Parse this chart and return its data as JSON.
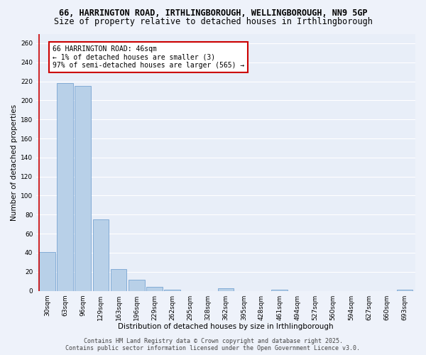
{
  "title_line1": "66, HARRINGTON ROAD, IRTHLINGBOROUGH, WELLINGBOROUGH, NN9 5GP",
  "title_line2": "Size of property relative to detached houses in Irthlingborough",
  "xlabel": "Distribution of detached houses by size in Irthlingborough",
  "ylabel": "Number of detached properties",
  "bar_color": "#b8d0e8",
  "bar_edge_color": "#6699cc",
  "background_color": "#e8eef8",
  "grid_color": "#ffffff",
  "annotation_box_text": "66 HARRINGTON ROAD: 46sqm\n← 1% of detached houses are smaller (3)\n97% of semi-detached houses are larger (565) →",
  "annotation_box_color": "#ffffff",
  "annotation_box_edge": "#cc0000",
  "categories": [
    "30sqm",
    "63sqm",
    "96sqm",
    "129sqm",
    "163sqm",
    "196sqm",
    "229sqm",
    "262sqm",
    "295sqm",
    "328sqm",
    "362sqm",
    "395sqm",
    "428sqm",
    "461sqm",
    "494sqm",
    "527sqm",
    "560sqm",
    "594sqm",
    "627sqm",
    "660sqm",
    "693sqm"
  ],
  "values": [
    41,
    218,
    215,
    75,
    23,
    12,
    4,
    1,
    0,
    0,
    3,
    0,
    0,
    1,
    0,
    0,
    0,
    0,
    0,
    0,
    1
  ],
  "ylim": [
    0,
    270
  ],
  "yticks": [
    0,
    20,
    40,
    60,
    80,
    100,
    120,
    140,
    160,
    180,
    200,
    220,
    240,
    260
  ],
  "footer_line1": "Contains HM Land Registry data © Crown copyright and database right 2025.",
  "footer_line2": "Contains public sector information licensed under the Open Government Licence v3.0.",
  "title_fontsize": 8.5,
  "subtitle_fontsize": 8.5,
  "axis_label_fontsize": 7.5,
  "tick_fontsize": 6.5,
  "footer_fontsize": 6.0,
  "annotation_fontsize": 7.0
}
